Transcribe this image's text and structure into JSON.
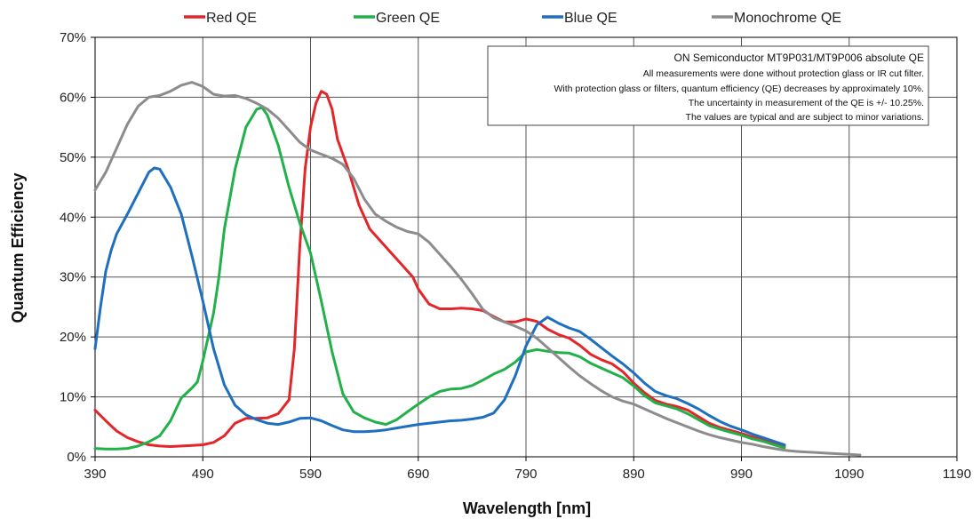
{
  "chart_data": {
    "type": "line",
    "title": "",
    "xlabel": "Wavelength [nm]",
    "ylabel": "Quantum Efficiency",
    "xlim": [
      390,
      1190
    ],
    "ylim": [
      0,
      70
    ],
    "x_ticks": [
      "390",
      "490",
      "590",
      "690",
      "790",
      "890",
      "990",
      "1090",
      "1190"
    ],
    "y_ticks": [
      "0%",
      "10%",
      "20%",
      "30%",
      "40%",
      "50%",
      "60%",
      "70%"
    ],
    "grid": true,
    "legend_position": "top",
    "annotation": {
      "title": "ON Semiconductor MT9P031/MT9P006 absolute QE",
      "lines": [
        "All measurements were done without protection glass or IR cut filter.",
        "With protection glass or filters, quantum efficiency (QE) decreases by approximately 10%.",
        "The uncertainty in measurement of the QE is +/- 10.25%.",
        "The values are typical and are subject to minor variations."
      ]
    },
    "series": [
      {
        "name": "Red QE",
        "color": "#e3262a",
        "points": [
          [
            390,
            7.8
          ],
          [
            400,
            6.0
          ],
          [
            410,
            4.3
          ],
          [
            420,
            3.2
          ],
          [
            430,
            2.5
          ],
          [
            440,
            2.0
          ],
          [
            450,
            1.8
          ],
          [
            460,
            1.7
          ],
          [
            470,
            1.8
          ],
          [
            480,
            1.9
          ],
          [
            490,
            2.0
          ],
          [
            500,
            2.4
          ],
          [
            510,
            3.5
          ],
          [
            520,
            5.6
          ],
          [
            530,
            6.4
          ],
          [
            540,
            6.4
          ],
          [
            550,
            6.5
          ],
          [
            560,
            7.2
          ],
          [
            570,
            9.5
          ],
          [
            575,
            18
          ],
          [
            580,
            35
          ],
          [
            585,
            48
          ],
          [
            590,
            55
          ],
          [
            595,
            59
          ],
          [
            600,
            61
          ],
          [
            605,
            60.5
          ],
          [
            610,
            58
          ],
          [
            615,
            53
          ],
          [
            625,
            48
          ],
          [
            635,
            42
          ],
          [
            645,
            38
          ],
          [
            655,
            36
          ],
          [
            665,
            34
          ],
          [
            675,
            32
          ],
          [
            685,
            30
          ],
          [
            690,
            28
          ],
          [
            700,
            25.5
          ],
          [
            710,
            24.7
          ],
          [
            720,
            24.7
          ],
          [
            730,
            24.8
          ],
          [
            740,
            24.7
          ],
          [
            750,
            24.4
          ],
          [
            760,
            23.4
          ],
          [
            770,
            22.5
          ],
          [
            780,
            22.5
          ],
          [
            790,
            23.0
          ],
          [
            800,
            22.6
          ],
          [
            810,
            21.3
          ],
          [
            820,
            20.4
          ],
          [
            830,
            19.8
          ],
          [
            840,
            18.6
          ],
          [
            850,
            17.1
          ],
          [
            860,
            16.2
          ],
          [
            870,
            15.5
          ],
          [
            880,
            14.2
          ],
          [
            890,
            12.3
          ],
          [
            900,
            10.7
          ],
          [
            910,
            9.4
          ],
          [
            920,
            8.8
          ],
          [
            930,
            8.4
          ],
          [
            940,
            7.8
          ],
          [
            950,
            6.7
          ],
          [
            960,
            5.6
          ],
          [
            970,
            4.9
          ],
          [
            980,
            4.4
          ],
          [
            990,
            3.9
          ],
          [
            1000,
            3.3
          ],
          [
            1010,
            2.8
          ],
          [
            1020,
            2.2
          ],
          [
            1030,
            1.8
          ]
        ]
      },
      {
        "name": "Green QE",
        "color": "#22b04b",
        "points": [
          [
            390,
            1.4
          ],
          [
            400,
            1.3
          ],
          [
            410,
            1.3
          ],
          [
            420,
            1.4
          ],
          [
            430,
            1.8
          ],
          [
            440,
            2.5
          ],
          [
            450,
            3.5
          ],
          [
            460,
            6.0
          ],
          [
            470,
            9.8
          ],
          [
            480,
            11.5
          ],
          [
            485,
            12.5
          ],
          [
            490,
            16
          ],
          [
            500,
            24
          ],
          [
            505,
            30
          ],
          [
            510,
            38
          ],
          [
            520,
            48
          ],
          [
            530,
            55
          ],
          [
            540,
            58
          ],
          [
            545,
            58.3
          ],
          [
            550,
            57
          ],
          [
            560,
            52
          ],
          [
            570,
            45
          ],
          [
            580,
            39
          ],
          [
            590,
            34
          ],
          [
            600,
            26
          ],
          [
            610,
            17.5
          ],
          [
            620,
            10.5
          ],
          [
            630,
            7.5
          ],
          [
            640,
            6.5
          ],
          [
            650,
            5.8
          ],
          [
            660,
            5.4
          ],
          [
            670,
            6.2
          ],
          [
            680,
            7.5
          ],
          [
            690,
            8.8
          ],
          [
            700,
            10.0
          ],
          [
            710,
            10.9
          ],
          [
            720,
            11.3
          ],
          [
            730,
            11.4
          ],
          [
            740,
            11.9
          ],
          [
            750,
            12.8
          ],
          [
            760,
            13.8
          ],
          [
            770,
            14.6
          ],
          [
            780,
            15.8
          ],
          [
            790,
            17.5
          ],
          [
            800,
            17.9
          ],
          [
            810,
            17.6
          ],
          [
            820,
            17.4
          ],
          [
            830,
            17.3
          ],
          [
            840,
            16.7
          ],
          [
            850,
            15.6
          ],
          [
            860,
            14.8
          ],
          [
            870,
            14.0
          ],
          [
            880,
            13.2
          ],
          [
            890,
            11.8
          ],
          [
            900,
            10.2
          ],
          [
            910,
            9.0
          ],
          [
            920,
            8.5
          ],
          [
            930,
            8.0
          ],
          [
            940,
            7.2
          ],
          [
            950,
            6.2
          ],
          [
            960,
            5.2
          ],
          [
            970,
            4.6
          ],
          [
            980,
            4.1
          ],
          [
            990,
            3.6
          ],
          [
            1000,
            3.0
          ],
          [
            1010,
            2.6
          ],
          [
            1020,
            2.0
          ],
          [
            1030,
            1.5
          ]
        ]
      },
      {
        "name": "Blue QE",
        "color": "#1f6fbf",
        "points": [
          [
            390,
            18
          ],
          [
            395,
            25
          ],
          [
            400,
            31
          ],
          [
            405,
            34.5
          ],
          [
            410,
            37.2
          ],
          [
            420,
            40.5
          ],
          [
            430,
            44.0
          ],
          [
            440,
            47.5
          ],
          [
            445,
            48.2
          ],
          [
            450,
            48.0
          ],
          [
            460,
            45.0
          ],
          [
            470,
            40.5
          ],
          [
            480,
            33.5
          ],
          [
            490,
            26
          ],
          [
            500,
            18
          ],
          [
            510,
            12
          ],
          [
            520,
            8.6
          ],
          [
            530,
            7.0
          ],
          [
            540,
            6.2
          ],
          [
            550,
            5.6
          ],
          [
            560,
            5.4
          ],
          [
            570,
            5.8
          ],
          [
            580,
            6.4
          ],
          [
            590,
            6.5
          ],
          [
            600,
            6.0
          ],
          [
            610,
            5.2
          ],
          [
            620,
            4.5
          ],
          [
            630,
            4.2
          ],
          [
            640,
            4.2
          ],
          [
            650,
            4.3
          ],
          [
            660,
            4.5
          ],
          [
            670,
            4.8
          ],
          [
            680,
            5.1
          ],
          [
            690,
            5.4
          ],
          [
            700,
            5.6
          ],
          [
            710,
            5.8
          ],
          [
            720,
            6.0
          ],
          [
            730,
            6.1
          ],
          [
            740,
            6.3
          ],
          [
            750,
            6.6
          ],
          [
            760,
            7.3
          ],
          [
            770,
            9.5
          ],
          [
            780,
            13.5
          ],
          [
            790,
            18.5
          ],
          [
            800,
            22.0
          ],
          [
            810,
            23.3
          ],
          [
            820,
            22.3
          ],
          [
            830,
            21.5
          ],
          [
            840,
            20.9
          ],
          [
            850,
            19.6
          ],
          [
            860,
            18.2
          ],
          [
            870,
            16.8
          ],
          [
            880,
            15.5
          ],
          [
            890,
            14.0
          ],
          [
            900,
            12.3
          ],
          [
            910,
            10.9
          ],
          [
            920,
            10.2
          ],
          [
            930,
            9.7
          ],
          [
            940,
            8.9
          ],
          [
            950,
            8.0
          ],
          [
            960,
            6.9
          ],
          [
            970,
            5.9
          ],
          [
            980,
            5.1
          ],
          [
            990,
            4.5
          ],
          [
            1000,
            3.8
          ],
          [
            1010,
            3.2
          ],
          [
            1020,
            2.6
          ],
          [
            1030,
            2.0
          ]
        ]
      },
      {
        "name": "Monochrome QE",
        "color": "#8c8c8c",
        "points": [
          [
            390,
            44.5
          ],
          [
            400,
            47.5
          ],
          [
            410,
            51.5
          ],
          [
            420,
            55.5
          ],
          [
            430,
            58.5
          ],
          [
            440,
            60.0
          ],
          [
            450,
            60.3
          ],
          [
            460,
            61.0
          ],
          [
            470,
            62.0
          ],
          [
            480,
            62.5
          ],
          [
            490,
            61.8
          ],
          [
            500,
            60.5
          ],
          [
            510,
            60.2
          ],
          [
            520,
            60.3
          ],
          [
            530,
            59.8
          ],
          [
            540,
            59.0
          ],
          [
            550,
            58.0
          ],
          [
            560,
            56.5
          ],
          [
            570,
            54.5
          ],
          [
            580,
            52.5
          ],
          [
            590,
            51.2
          ],
          [
            600,
            50.5
          ],
          [
            610,
            49.8
          ],
          [
            620,
            48.8
          ],
          [
            630,
            46.5
          ],
          [
            640,
            43.0
          ],
          [
            650,
            40.5
          ],
          [
            660,
            39.3
          ],
          [
            670,
            38.3
          ],
          [
            680,
            37.6
          ],
          [
            690,
            37.2
          ],
          [
            700,
            35.8
          ],
          [
            710,
            33.8
          ],
          [
            720,
            31.8
          ],
          [
            730,
            29.6
          ],
          [
            740,
            27.2
          ],
          [
            750,
            24.6
          ],
          [
            760,
            23.2
          ],
          [
            770,
            22.5
          ],
          [
            780,
            21.8
          ],
          [
            790,
            21.0
          ],
          [
            800,
            19.8
          ],
          [
            810,
            18.2
          ],
          [
            820,
            16.6
          ],
          [
            830,
            15.0
          ],
          [
            840,
            13.5
          ],
          [
            850,
            12.2
          ],
          [
            860,
            11.0
          ],
          [
            870,
            10.0
          ],
          [
            880,
            9.3
          ],
          [
            890,
            8.8
          ],
          [
            900,
            8.0
          ],
          [
            910,
            7.2
          ],
          [
            920,
            6.4
          ],
          [
            930,
            5.7
          ],
          [
            940,
            5.0
          ],
          [
            950,
            4.3
          ],
          [
            960,
            3.7
          ],
          [
            970,
            3.2
          ],
          [
            980,
            2.8
          ],
          [
            990,
            2.4
          ],
          [
            1000,
            2.1
          ],
          [
            1010,
            1.7
          ],
          [
            1020,
            1.4
          ],
          [
            1030,
            1.1
          ],
          [
            1040,
            0.9
          ],
          [
            1050,
            0.8
          ],
          [
            1060,
            0.7
          ],
          [
            1070,
            0.6
          ],
          [
            1080,
            0.5
          ],
          [
            1090,
            0.4
          ],
          [
            1100,
            0.3
          ]
        ]
      }
    ]
  }
}
